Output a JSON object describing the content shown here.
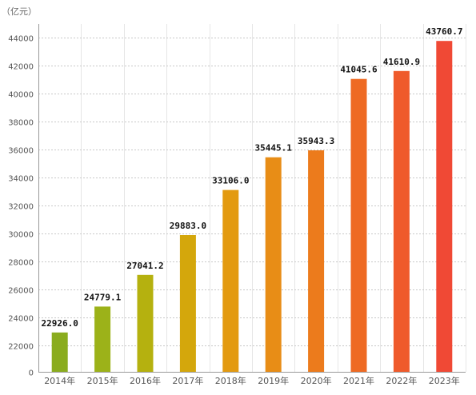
{
  "chart_data": {
    "type": "bar",
    "unit_label": "（亿元）",
    "categories": [
      "2014年",
      "2015年",
      "2016年",
      "2017年",
      "2018年",
      "2019年",
      "2020年",
      "2021年",
      "2022年",
      "2023年"
    ],
    "values": [
      22926.0,
      24779.1,
      27041.2,
      29883.0,
      33106.0,
      35445.1,
      35943.3,
      41045.6,
      41610.9,
      43760.7
    ],
    "value_labels": [
      "22926.0",
      "24779.1",
      "27041.2",
      "29883.0",
      "33106.0",
      "35445.1",
      "35943.3",
      "41045.6",
      "41610.9",
      "43760.7"
    ],
    "y_ticks": [
      0,
      22000,
      24000,
      26000,
      28000,
      30000,
      32000,
      34000,
      36000,
      38000,
      40000,
      42000,
      44000
    ],
    "y_axis_break": true,
    "ylim": [
      21000,
      45000
    ],
    "grid": true,
    "bar_colors": [
      "#8aac1e",
      "#9cb219",
      "#b5b10f",
      "#d4a70c",
      "#e39a10",
      "#e88d16",
      "#ec7b1c",
      "#ee6a23",
      "#ef5a2b",
      "#f04935"
    ],
    "xlabel": "",
    "ylabel": ""
  }
}
